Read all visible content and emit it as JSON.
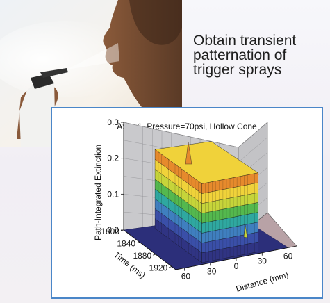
{
  "headline": [
    "Obtain transient",
    "patternation of",
    "trigger sprays"
  ],
  "colors": {
    "panel_border": "#4a86c8",
    "floor": "#b8a2a6",
    "wall": "#c9c9cc",
    "colormap": [
      "#303483",
      "#3a4fa8",
      "#3f7fbf",
      "#2fa8a0",
      "#54b84e",
      "#c6d43a",
      "#f0d23a",
      "#e68a2c"
    ]
  },
  "chart_data": {
    "type": "surface",
    "title": "Axis=1, Pressure=70psi, Hollow Cone",
    "zlabel": "Path-Integrated Extinction",
    "ylabel": "Time (ms)",
    "xlabel": "Distance (mm)",
    "zlim": [
      0,
      0.3
    ],
    "z_ticks": [
      "0.0",
      "0.1",
      "0.2",
      "0.3"
    ],
    "time_ticks": [
      "1800",
      "1840",
      "1880",
      "1920"
    ],
    "distance_ticks": [
      "-60",
      "-30",
      "0",
      "30",
      "60"
    ],
    "time_range": [
      1800,
      1930
    ],
    "distance_range": [
      -70,
      70
    ],
    "plateau_level": 0.22,
    "peak_value": 0.3,
    "spray_window_distance": [
      -35,
      35
    ],
    "grid": true
  }
}
